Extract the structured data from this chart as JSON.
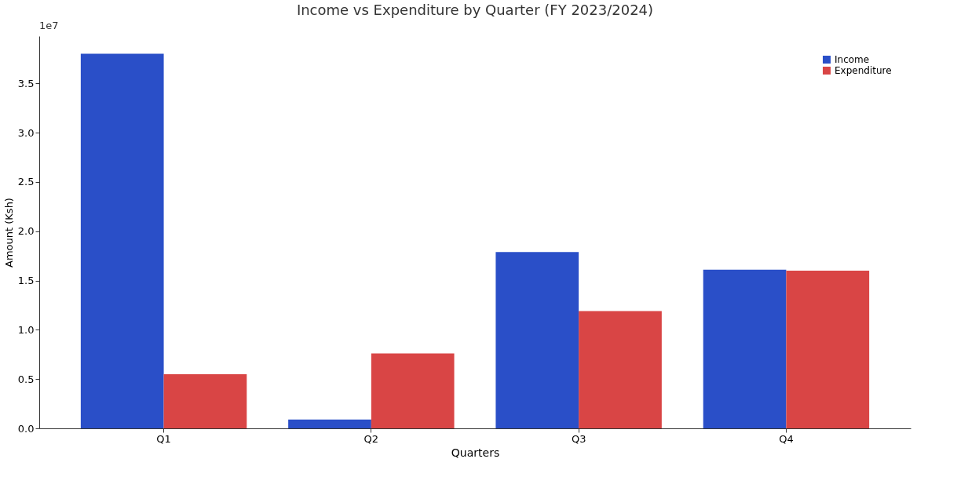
{
  "chart_data": {
    "type": "bar",
    "title": "Income vs Expenditure by Quarter (FY 2023/2024)",
    "xlabel": "Quarters",
    "ylabel": "Amount (Ksh)",
    "annotations": [
      "1e7"
    ],
    "categories": [
      "Q1",
      "Q2",
      "Q3",
      "Q4"
    ],
    "series": [
      {
        "name": "Income",
        "color": "#2a4fc8",
        "values": [
          3.8,
          0.09,
          1.79,
          1.61
        ]
      },
      {
        "name": "Expenditure",
        "color": "#d94545",
        "values": [
          0.55,
          0.76,
          1.19,
          1.6
        ]
      }
    ],
    "ylim": [
      0,
      3.98
    ],
    "yticks": [
      {
        "value": 0,
        "label": "0.0"
      },
      {
        "value": 0.5,
        "label": "0.5"
      },
      {
        "value": 1,
        "label": "1.0"
      },
      {
        "value": 1.5,
        "label": "1.5"
      },
      {
        "value": 2,
        "label": "2.0"
      },
      {
        "value": 2.5,
        "label": "2.5"
      },
      {
        "value": 3,
        "label": "3.0"
      },
      {
        "value": 3.5,
        "label": "3.5"
      }
    ],
    "grid": false,
    "legend": "top right"
  }
}
